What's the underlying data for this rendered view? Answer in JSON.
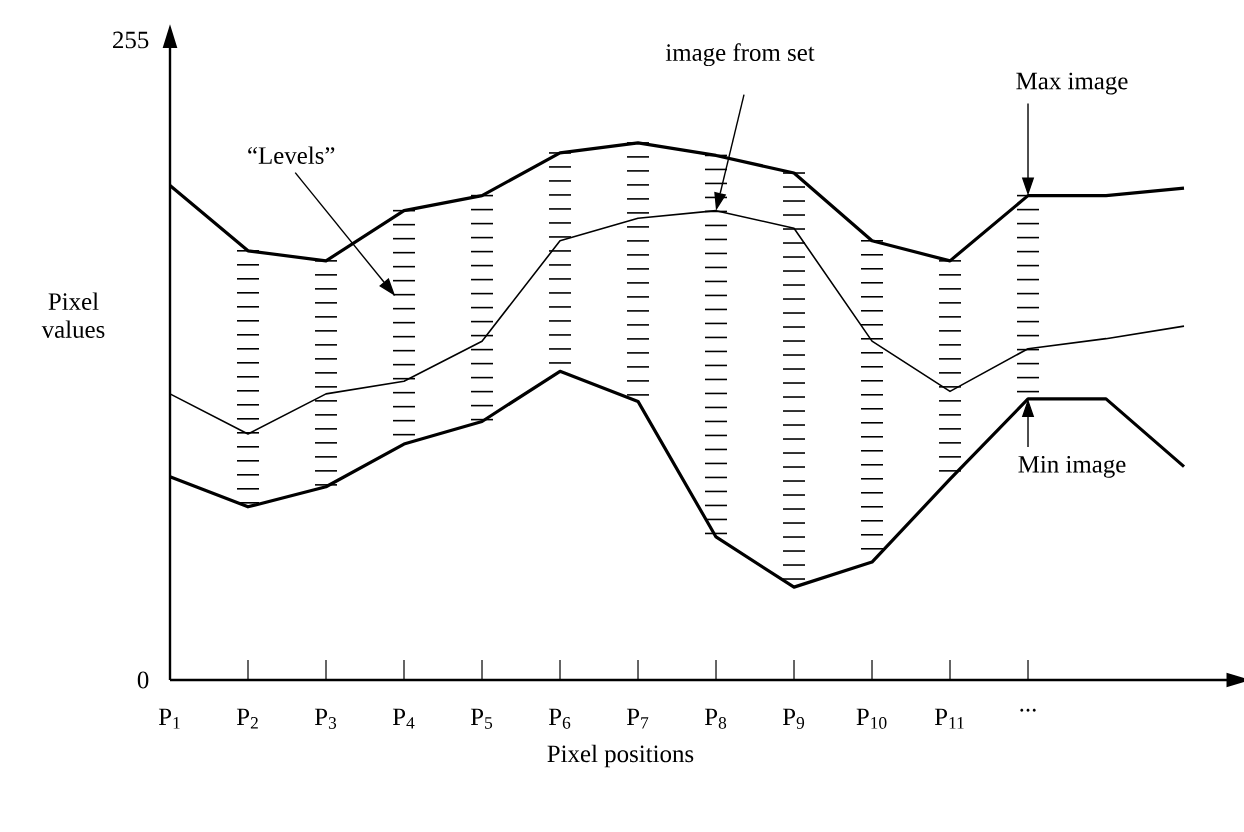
{
  "chart_data": {
    "type": "line",
    "xlabel": "Pixel positions",
    "ylabel": "Pixel values",
    "categories": [
      "P$_{1}$",
      "P$_{2}$",
      "P$_{3}$",
      "P$_{4}$",
      "P$_{5}$",
      "P$_{6}$",
      "P$_{7}$",
      "P$_{8}$",
      "P$_{9}$",
      "P$_{10}$",
      "P$_{11}$",
      "...",
      null,
      null
    ],
    "series": [
      {
        "color": "#000000",
        "values": [
          197,
          171,
          167,
          187,
          193,
          210,
          214,
          209,
          202,
          175,
          167,
          193,
          193,
          196
        ]
      },
      {
        "color": "#000000",
        "values": [
          114,
          98,
          114,
          119,
          135,
          175,
          184,
          187,
          180,
          135,
          115,
          132,
          136,
          141
        ]
      },
      {
        "color": "#000000",
        "values": [
          81,
          69,
          77,
          94,
          103,
          123,
          111,
          57,
          37,
          47,
          80,
          112,
          112,
          85
        ]
      }
    ],
    "ylim": [
      0,
      255
    ],
    "yticks": [
      0,
      255
    ],
    "grid": false,
    "marker": "none",
    "line_style": "solid",
    "annotations": [
      "“Levels”",
      {
        "text": "image from set",
        "x": "P$_{8}$",
        "y": 187
      },
      {
        "text": "Max  image",
        "x": "...",
        "y": 193
      },
      {
        "text": "Min  image",
        "x": "...",
        "y": 112
      }
    ]
  }
}
